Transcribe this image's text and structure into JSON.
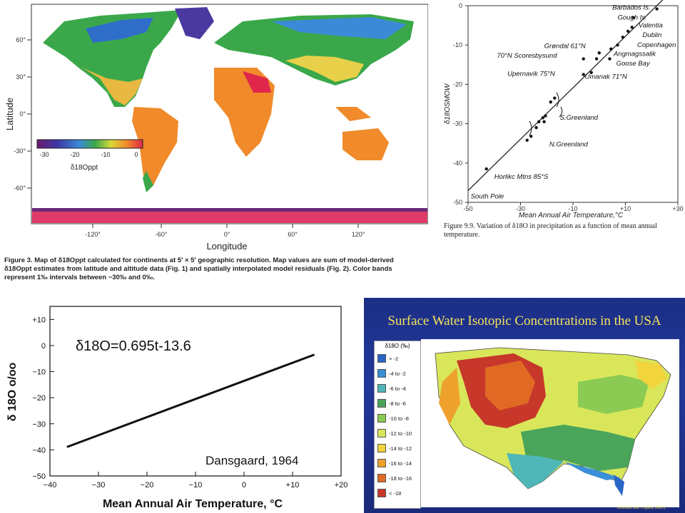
{
  "chart_data": [
    {
      "type": "heatmap",
      "panel": "world-map",
      "xlabel": "Longitude",
      "ylabel": "Latitude",
      "x_ticks": [
        "-120°",
        "-60°",
        "0°",
        "60°",
        "120°"
      ],
      "y_ticks": [
        "60°",
        "30°",
        "0°",
        "-30°",
        "-60°"
      ],
      "colorbar_ticks": [
        "-30",
        "-20",
        "-10",
        "0"
      ],
      "colorbar_label": "δ18Oppt",
      "colorbar_range": [
        -30,
        0
      ],
      "caption": "Figure 3. Map of δ18Oppt calculated for continents at 5′ × 5′ geographic resolution. Map values are sum of model-derived δ18Oppt estimates from latitude and altitude data (Fig. 1) and spatially interpolated model residuals (Fig. 2). Color bands represent 1‰ intervals between −30‰ and 0‰."
    },
    {
      "type": "scatter",
      "panel": "dansgaard-stations",
      "xlabel": "Mean Annual Air Temperature,°C",
      "ylabel": "δ18OSMOW",
      "xlim": [
        -50,
        30
      ],
      "ylim": [
        -50,
        0
      ],
      "x_ticks": [
        "-50",
        "-30",
        "-10",
        "+10",
        "+30"
      ],
      "y_ticks": [
        "0",
        "-10",
        "-20",
        "-30",
        "-40",
        "-50"
      ],
      "points": [
        {
          "x": -43,
          "y": -41.5
        },
        {
          "x": -27.5,
          "y": -34.2
        },
        {
          "x": -26,
          "y": -33.2
        },
        {
          "x": -24,
          "y": -31
        },
        {
          "x": -23,
          "y": -29.5
        },
        {
          "x": -21.5,
          "y": -28.5
        },
        {
          "x": -21,
          "y": -29.5
        },
        {
          "x": -20.5,
          "y": -28
        },
        {
          "x": -18.5,
          "y": -24.5
        },
        {
          "x": -17,
          "y": -23.5
        },
        {
          "x": -6,
          "y": -17.5
        },
        {
          "x": -3,
          "y": -17
        },
        {
          "x": -6,
          "y": -13.5
        },
        {
          "x": -1,
          "y": -13.5
        },
        {
          "x": 0,
          "y": -12
        },
        {
          "x": 4,
          "y": -13.5
        },
        {
          "x": 4.5,
          "y": -11
        },
        {
          "x": 7,
          "y": -10
        },
        {
          "x": 9,
          "y": -8
        },
        {
          "x": 11,
          "y": -6.5
        },
        {
          "x": 12.5,
          "y": -5.5
        },
        {
          "x": 13,
          "y": -3
        },
        {
          "x": 22,
          "y": -0.8
        }
      ],
      "fit_line": {
        "x1": -50,
        "y1": -47,
        "x2": 25,
        "y2": 2
      },
      "annotations": [
        {
          "text": "Barbados Is.",
          "x": 5,
          "y": -1
        },
        {
          "text": "Gough Is.",
          "x": 7,
          "y": -3.5
        },
        {
          "text": "Valentia",
          "x": 15,
          "y": -5.5
        },
        {
          "text": "Dublin",
          "x": 16.5,
          "y": -8
        },
        {
          "text": "Copenhagen",
          "x": 14.5,
          "y": -10.5
        },
        {
          "text": "Grøndal 61°N",
          "x": -21,
          "y": -10.8
        },
        {
          "text": "70°N Scoresbysund",
          "x": -39,
          "y": -13.2
        },
        {
          "text": "Angmagssalik",
          "x": 5.5,
          "y": -12.8
        },
        {
          "text": "Goose Bay",
          "x": 6.5,
          "y": -15.2
        },
        {
          "text": "Upernavik 75°N",
          "x": -35,
          "y": -17.8
        },
        {
          "text": "Umanak 71°N",
          "x": -5.5,
          "y": -18.6
        },
        {
          "text": "S.Greenland",
          "x": -15,
          "y": -29
        },
        {
          "text": "N.Greenland",
          "x": -19,
          "y": -35.8
        },
        {
          "text": "Horlikc Mtns 85°S",
          "x": -40,
          "y": -44
        },
        {
          "text": "South Pole",
          "x": -49,
          "y": -49
        }
      ],
      "caption": "Figure 9.9. Variation of δ18O in precipitation as a function of mean annual temperature."
    },
    {
      "type": "line",
      "panel": "dansgaard-regression",
      "equation": "δ18O=0.695t-13.6",
      "source_note": "Dansgaard, 1964",
      "xlabel": "Mean Annual Air Temperature, °C",
      "ylabel": "δ 18O o/oo",
      "xlim": [
        -40,
        20
      ],
      "ylim": [
        -50,
        15
      ],
      "x_ticks": [
        "−40",
        "−30",
        "−20",
        "−10",
        "0",
        "+10",
        "+20"
      ],
      "y_ticks": [
        "+10",
        "0",
        "−10",
        "−20",
        "−30",
        "−40",
        "−50"
      ],
      "series": [
        {
          "x": [
            -36.5,
            14.5
          ],
          "y": [
            -38.9,
            -3.5
          ]
        }
      ]
    },
    {
      "type": "heatmap",
      "panel": "usa-surface-water",
      "title": "Surface Water Isotopic Concentrations in the USA",
      "legend_title": "δ18O (‰)",
      "legend": [
        {
          "label": "> -2",
          "color": "#2a66c8"
        },
        {
          "label": "-4 to -2",
          "color": "#3b8fd6"
        },
        {
          "label": "-6 to -4",
          "color": "#4fb7b8"
        },
        {
          "label": "-8 to -6",
          "color": "#4aa55a"
        },
        {
          "label": "-10 to -8",
          "color": "#8ccb53"
        },
        {
          "label": "-12 to -10",
          "color": "#d9e65a"
        },
        {
          "label": "-14 to -12",
          "color": "#f2d43c"
        },
        {
          "label": "-16 to -14",
          "color": "#eea12d"
        },
        {
          "label": "-18 to -16",
          "color": "#e06a24"
        },
        {
          "label": "< -18",
          "color": "#c7372a"
        }
      ],
      "credit": "(Kendall and Coplen, 2001)"
    }
  ]
}
